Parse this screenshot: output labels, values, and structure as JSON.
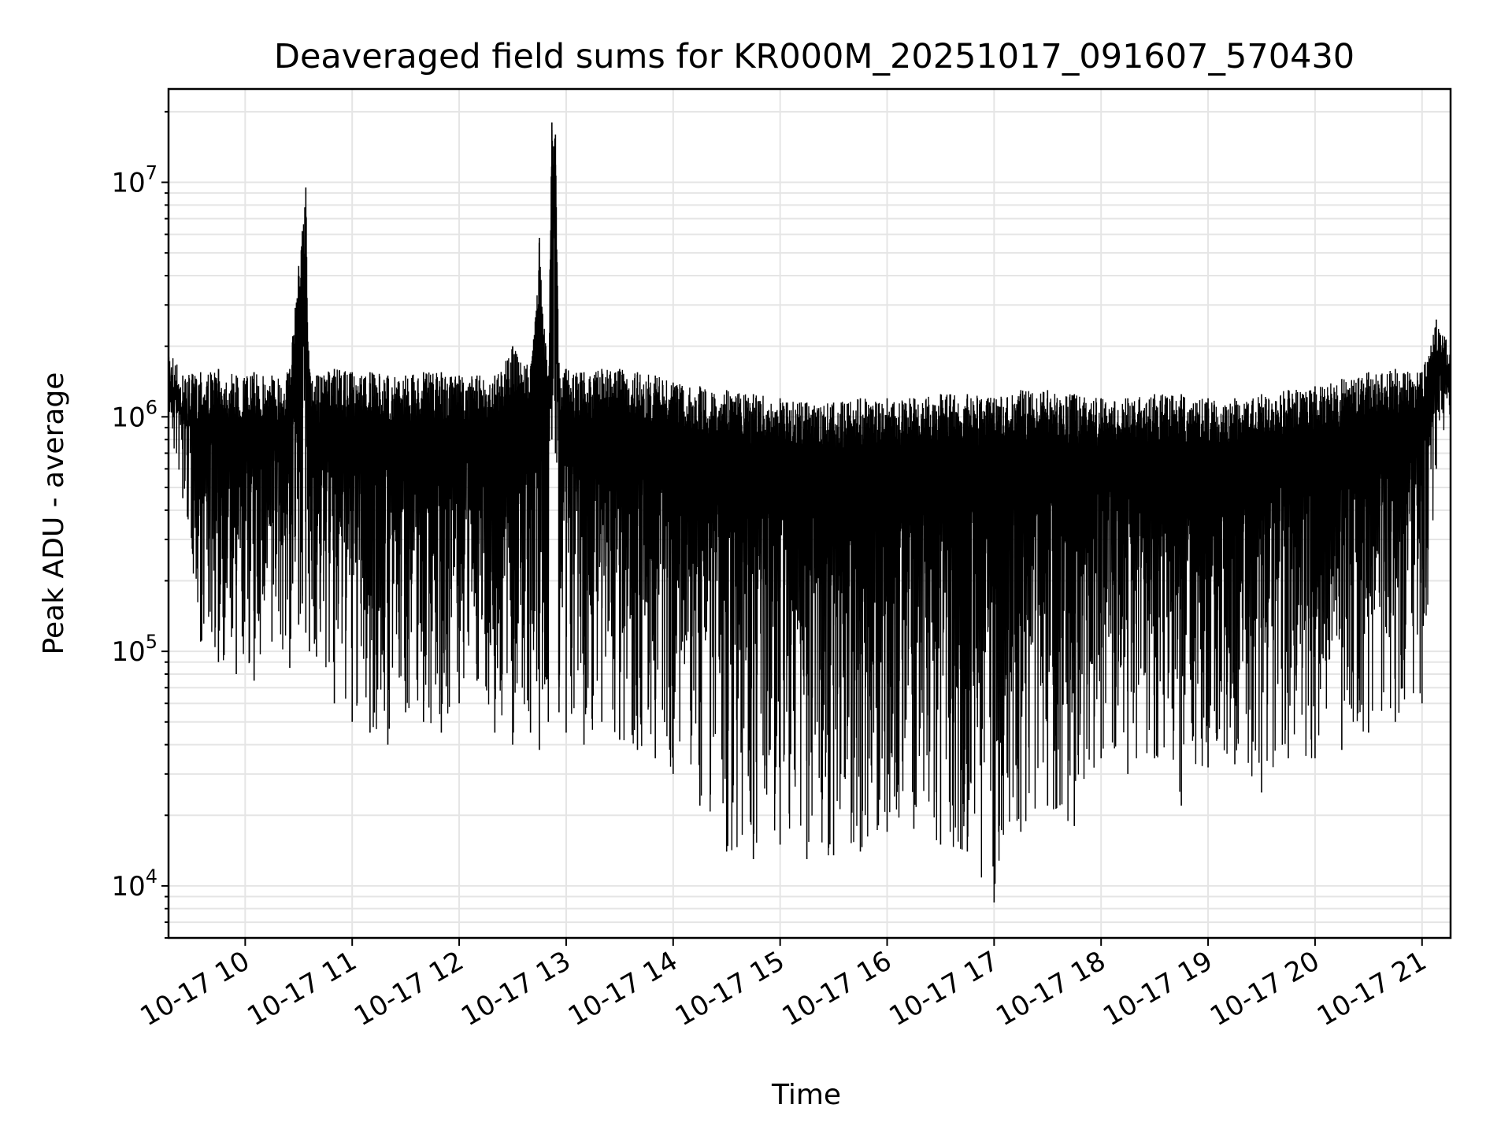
{
  "chart_data": {
    "type": "line",
    "title": "Deaveraged field sums for KR000M_20251017_091607_570430",
    "xlabel": "Time",
    "ylabel": "Peak ADU - average",
    "yscale": "log",
    "ylim": [
      6000,
      25000000
    ],
    "xlim": [
      "2025-10-17 09:17",
      "2025-10-17 21:16"
    ],
    "grid": true,
    "x_ticks": [
      "10-17 10",
      "10-17 11",
      "10-17 12",
      "10-17 13",
      "10-17 14",
      "10-17 15",
      "10-17 16",
      "10-17 17",
      "10-17 18",
      "10-17 19",
      "10-17 20",
      "10-17 21"
    ],
    "y_ticks": [
      {
        "base": "10",
        "exp": "4",
        "value": 10000
      },
      {
        "base": "10",
        "exp": "5",
        "value": 100000
      },
      {
        "base": "10",
        "exp": "6",
        "value": 1000000
      },
      {
        "base": "10",
        "exp": "7",
        "value": 10000000
      }
    ],
    "series": [
      {
        "color": "#000000",
        "x": [
          "2025-10-17 09:17",
          "2025-10-17 09:25",
          "2025-10-17 09:35",
          "2025-10-17 09:45",
          "2025-10-17 09:55",
          "2025-10-17 10:05",
          "2025-10-17 10:15",
          "2025-10-17 10:25",
          "2025-10-17 10:30",
          "2025-10-17 10:32",
          "2025-10-17 10:34",
          "2025-10-17 10:36",
          "2025-10-17 10:40",
          "2025-10-17 10:50",
          "2025-10-17 11:00",
          "2025-10-17 11:10",
          "2025-10-17 11:20",
          "2025-10-17 11:30",
          "2025-10-17 11:40",
          "2025-10-17 11:50",
          "2025-10-17 12:00",
          "2025-10-17 12:10",
          "2025-10-17 12:20",
          "2025-10-17 12:30",
          "2025-10-17 12:40",
          "2025-10-17 12:45",
          "2025-10-17 12:50",
          "2025-10-17 12:52",
          "2025-10-17 12:54",
          "2025-10-17 12:56",
          "2025-10-17 13:00",
          "2025-10-17 13:10",
          "2025-10-17 13:20",
          "2025-10-17 13:30",
          "2025-10-17 13:40",
          "2025-10-17 13:50",
          "2025-10-17 14:00",
          "2025-10-17 14:15",
          "2025-10-17 14:30",
          "2025-10-17 14:45",
          "2025-10-17 15:00",
          "2025-10-17 15:15",
          "2025-10-17 15:30",
          "2025-10-17 15:45",
          "2025-10-17 16:00",
          "2025-10-17 16:15",
          "2025-10-17 16:30",
          "2025-10-17 16:45",
          "2025-10-17 17:00",
          "2025-10-17 17:15",
          "2025-10-17 17:30",
          "2025-10-17 17:45",
          "2025-10-17 18:00",
          "2025-10-17 18:15",
          "2025-10-17 18:30",
          "2025-10-17 18:45",
          "2025-10-17 19:00",
          "2025-10-17 19:15",
          "2025-10-17 19:30",
          "2025-10-17 19:45",
          "2025-10-17 20:00",
          "2025-10-17 20:15",
          "2025-10-17 20:30",
          "2025-10-17 20:45",
          "2025-10-17 21:00",
          "2025-10-17 21:08",
          "2025-10-17 21:16"
        ],
        "high": [
          2100000,
          1500000,
          1550000,
          1600000,
          1500000,
          1550000,
          1500000,
          1600000,
          4400000,
          6200000,
          9500000,
          1600000,
          1500000,
          1600000,
          1550000,
          1550000,
          1500000,
          1500000,
          1550000,
          1550000,
          1500000,
          1500000,
          1500000,
          2000000,
          1600000,
          5800000,
          1500000,
          18000000,
          16000000,
          1700000,
          1600000,
          1550000,
          1600000,
          1600000,
          1550000,
          1500000,
          1400000,
          1350000,
          1300000,
          1250000,
          1200000,
          1150000,
          1150000,
          1200000,
          1200000,
          1200000,
          1250000,
          1250000,
          1200000,
          1300000,
          1300000,
          1250000,
          1200000,
          1200000,
          1250000,
          1250000,
          1200000,
          1200000,
          1250000,
          1300000,
          1350000,
          1450000,
          1550000,
          1600000,
          1550000,
          2600000,
          2000000
        ],
        "low": [
          800000,
          450000,
          110000,
          90000,
          80000,
          75000,
          110000,
          85000,
          130000,
          160000,
          120000,
          100000,
          95000,
          60000,
          50000,
          45000,
          40000,
          55000,
          50000,
          45000,
          60000,
          75000,
          45000,
          40000,
          45000,
          38000,
          50000,
          800000,
          700000,
          55000,
          45000,
          40000,
          50000,
          42000,
          38000,
          35000,
          30000,
          22000,
          14000,
          13000,
          15000,
          13000,
          13500,
          14000,
          17000,
          17500,
          15000,
          14000,
          8500,
          17000,
          22000,
          18000,
          35000,
          30000,
          35000,
          22000,
          32000,
          33000,
          25000,
          35000,
          35000,
          38000,
          45000,
          50000,
          60000,
          600000,
          1000000
        ]
      }
    ]
  }
}
